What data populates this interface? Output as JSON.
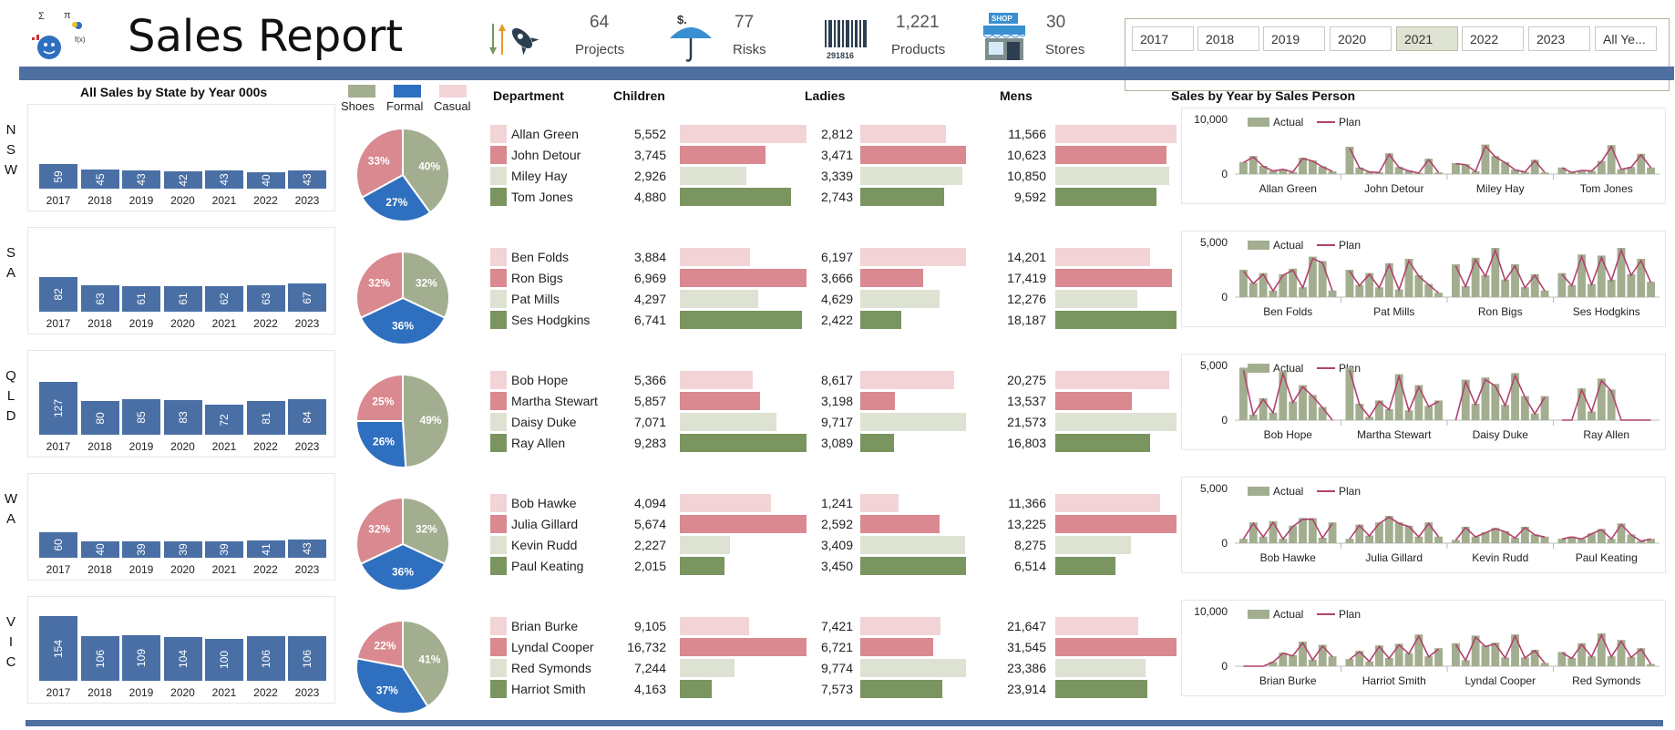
{
  "header": {
    "title": "Sales Report",
    "kpis": [
      {
        "value": "64",
        "label": "Projects",
        "icon": "rocket-icon"
      },
      {
        "value": "77",
        "label": "Risks",
        "icon": "umbrella-icon"
      },
      {
        "value": "1,221",
        "label": "Products",
        "icon": "barcode-icon"
      },
      {
        "value": "30",
        "label": "Stores",
        "icon": "shop-icon"
      }
    ],
    "barcode_text": "291816",
    "shop_sign": "SHOP",
    "logo_symbols": [
      "Σ",
      "π",
      "f(x)"
    ]
  },
  "slicer": {
    "years": [
      "2017",
      "2018",
      "2019",
      "2020",
      "2021",
      "2022",
      "2023",
      "All Ye..."
    ],
    "selected": "2021"
  },
  "headings": {
    "bars_title": "All Sales by State by Year 000s",
    "legend": [
      "Shoes",
      "Formal",
      "Casual"
    ],
    "department": "Department",
    "children": "Children",
    "ladies": "Ladies",
    "mens": "Mens",
    "sales_by_person": "Sales by Year by Sales Person",
    "actual": "Actual",
    "plan": "Plan"
  },
  "colors": {
    "navy": "#4f6fa0",
    "bar_blue": "#4a6fa5",
    "shoes": "#a2ae8f",
    "formal": "#2f6fbf",
    "casual": "#d9898f",
    "light_pink": "#f2d4d6",
    "pink": "#d9898f",
    "light_green": "#dde2d3",
    "green": "#7a9560",
    "plan_line": "#b0436b"
  },
  "states": [
    {
      "letters": [
        "N",
        "S",
        "W"
      ],
      "years": [
        "2017",
        "2018",
        "2019",
        "2020",
        "2021",
        "2022",
        "2023"
      ],
      "bars": [
        59,
        45,
        43,
        42,
        43,
        40,
        43
      ],
      "pie": {
        "shoes": 40,
        "formal": 27,
        "casual": 33
      },
      "people": [
        {
          "name": "Allan Green",
          "children": "5,552",
          "ladies": "2,812",
          "mens": "11,566"
        },
        {
          "name": "John Detour",
          "children": "3,745",
          "ladies": "3,471",
          "mens": "10,623"
        },
        {
          "name": "Miley Hay",
          "children": "2,926",
          "ladies": "3,339",
          "mens": "10,850"
        },
        {
          "name": "Tom Jones",
          "children": "4,880",
          "ladies": "2,743",
          "mens": "9,592"
        }
      ],
      "children_vals": [
        5552,
        3745,
        2926,
        4880
      ],
      "ladies_vals": [
        2812,
        3471,
        3339,
        2743
      ],
      "mens_vals": [
        11566,
        10623,
        10850,
        9592
      ],
      "line": {
        "ymax_label": "10,000",
        "ymin_label": "0",
        "ymax": 10000,
        "groups": [
          "Allan Green",
          "John Detour",
          "Miley Hay",
          "Tom Jones"
        ],
        "actual": [
          [
            2200,
            3300,
            1500,
            600,
            900,
            400,
            3000,
            2500,
            1400,
            500
          ],
          [
            5000,
            1200,
            400,
            300,
            3800,
            1300,
            600,
            200,
            2800,
            300
          ],
          [
            2000,
            1800,
            500,
            5400,
            3300,
            2200,
            800,
            400,
            2600,
            300
          ],
          [
            1200,
            300,
            700,
            600,
            2400,
            5300,
            900,
            1300,
            3700,
            1200
          ]
        ]
      }
    },
    {
      "letters": [
        "S",
        "A"
      ],
      "years": [
        "2017",
        "2018",
        "2019",
        "2020",
        "2021",
        "2022",
        "2023"
      ],
      "bars": [
        82,
        63,
        61,
        61,
        62,
        63,
        67
      ],
      "pie": {
        "shoes": 32,
        "formal": 36,
        "casual": 32
      },
      "people": [
        {
          "name": "Ben Folds",
          "children": "3,884",
          "ladies": "6,197",
          "mens": "14,201"
        },
        {
          "name": "Ron Bigs",
          "children": "6,969",
          "ladies": "3,666",
          "mens": "17,419"
        },
        {
          "name": "Pat Mills",
          "children": "4,297",
          "ladies": "4,629",
          "mens": "12,276"
        },
        {
          "name": "Ses Hodgkins",
          "children": "6,741",
          "ladies": "2,422",
          "mens": "18,187"
        }
      ],
      "children_vals": [
        3884,
        6969,
        4297,
        6741
      ],
      "ladies_vals": [
        6197,
        3666,
        4629,
        2422
      ],
      "mens_vals": [
        14201,
        17419,
        12276,
        18187
      ],
      "line": {
        "ymax_label": "5,000",
        "ymin_label": "0",
        "ymax": 5000,
        "groups": [
          "Ben Folds",
          "Pat Mills",
          "Ron Bigs",
          "Ses Hodgkins"
        ],
        "actual": [
          [
            2500,
            1300,
            2200,
            600,
            2100,
            2600,
            900,
            3700,
            3300,
            600
          ],
          [
            2500,
            1100,
            2200,
            900,
            3100,
            700,
            3500,
            2000,
            1200,
            400
          ],
          [
            3000,
            1000,
            3600,
            2000,
            4500,
            1600,
            3000,
            900,
            2100,
            600
          ],
          [
            2200,
            1100,
            3900,
            1200,
            3800,
            1600,
            4500,
            2100,
            3500,
            1400
          ]
        ]
      }
    },
    {
      "letters": [
        "Q",
        "L",
        "D"
      ],
      "years": [
        "2017",
        "2018",
        "2019",
        "2020",
        "2021",
        "2022",
        "2023"
      ],
      "bars": [
        127,
        80,
        85,
        83,
        72,
        81,
        84
      ],
      "pie": {
        "shoes": 49,
        "formal": 26,
        "casual": 25
      },
      "people": [
        {
          "name": "Bob Hope",
          "children": "5,366",
          "ladies": "8,617",
          "mens": "20,275"
        },
        {
          "name": "Martha Stewart",
          "children": "5,857",
          "ladies": "3,198",
          "mens": "13,537"
        },
        {
          "name": "Daisy Duke",
          "children": "7,071",
          "ladies": "9,717",
          "mens": "21,573"
        },
        {
          "name": "Ray Allen",
          "children": "9,283",
          "ladies": "3,089",
          "mens": "16,803"
        }
      ],
      "children_vals": [
        5366,
        5857,
        7071,
        9283
      ],
      "ladies_vals": [
        8617,
        3198,
        9717,
        3089
      ],
      "mens_vals": [
        20275,
        13537,
        21573,
        16803
      ],
      "line": {
        "ymax_label": "5,000",
        "ymin_label": "0",
        "ymax": 5000,
        "groups": [
          "Bob Hope",
          "Martha Stewart",
          "Daisy Duke",
          "Ray Allen"
        ],
        "actual": [
          [
            4800,
            500,
            2000,
            700,
            4500,
            1700,
            3200,
            2300,
            1200,
            0
          ],
          [
            4800,
            1500,
            300,
            1800,
            1000,
            4200,
            900,
            3200,
            1300,
            1800
          ],
          [
            0,
            3700,
            1500,
            3900,
            3300,
            1400,
            4300,
            2200,
            600,
            2200
          ],
          [
            0,
            0,
            2900,
            800,
            3800,
            2800,
            0,
            0,
            0,
            0
          ]
        ]
      }
    },
    {
      "letters": [
        "W",
        "A"
      ],
      "years": [
        "2017",
        "2018",
        "2019",
        "2020",
        "2021",
        "2022",
        "2023"
      ],
      "bars": [
        60,
        40,
        39,
        39,
        39,
        41,
        43
      ],
      "pie": {
        "shoes": 32,
        "formal": 36,
        "casual": 32
      },
      "people": [
        {
          "name": "Bob Hawke",
          "children": "4,094",
          "ladies": "1,241",
          "mens": "11,366"
        },
        {
          "name": "Julia Gillard",
          "children": "5,674",
          "ladies": "2,592",
          "mens": "13,225"
        },
        {
          "name": "Kevin Rudd",
          "children": "2,227",
          "ladies": "3,409",
          "mens": "8,275"
        },
        {
          "name": "Paul Keating",
          "children": "2,015",
          "ladies": "3,450",
          "mens": "6,514"
        }
      ],
      "children_vals": [
        4094,
        5674,
        2227,
        2015
      ],
      "ladies_vals": [
        1241,
        2592,
        3409,
        3450
      ],
      "mens_vals": [
        11366,
        13225,
        8275,
        6514
      ],
      "line": {
        "ymax_label": "5,000",
        "ymin_label": "0",
        "ymax": 5000,
        "groups": [
          "Bob Hawke",
          "Julia Gillard",
          "Kevin Rudd",
          "Paul Keating"
        ],
        "actual": [
          [
            400,
            1900,
            600,
            2000,
            400,
            1600,
            2300,
            2300,
            500,
            1900
          ],
          [
            400,
            1700,
            700,
            1900,
            2500,
            1900,
            1600,
            600,
            1900,
            600
          ],
          [
            300,
            1500,
            600,
            1000,
            1400,
            1100,
            500,
            1500,
            800,
            600
          ],
          [
            400,
            600,
            400,
            900,
            1300,
            400,
            1800,
            800,
            200,
            400
          ]
        ]
      }
    },
    {
      "letters": [
        "V",
        "I",
        "C"
      ],
      "years": [
        "2017",
        "2018",
        "2019",
        "2020",
        "2021",
        "2022",
        "2023"
      ],
      "bars": [
        154,
        106,
        109,
        104,
        100,
        106,
        106
      ],
      "pie": {
        "shoes": 41,
        "formal": 37,
        "casual": 22
      },
      "people": [
        {
          "name": "Brian Burke",
          "children": "9,105",
          "ladies": "7,421",
          "mens": "21,647"
        },
        {
          "name": "Lyndal Cooper",
          "children": "16,732",
          "ladies": "6,721",
          "mens": "31,545"
        },
        {
          "name": "Red Symonds",
          "children": "7,244",
          "ladies": "9,774",
          "mens": "23,386"
        },
        {
          "name": "Harriot Smith",
          "children": "4,163",
          "ladies": "7,573",
          "mens": "23,914"
        }
      ],
      "children_vals": [
        9105,
        16732,
        7244,
        4163
      ],
      "ladies_vals": [
        7421,
        6721,
        9774,
        7573
      ],
      "mens_vals": [
        21647,
        31545,
        23386,
        23914
      ],
      "line": {
        "ymax_label": "10,000",
        "ymin_label": "0",
        "ymax": 10000,
        "groups": [
          "Brian Burke",
          "Harriot Smith",
          "Lyndal Cooper",
          "Red Symonds"
        ],
        "actual": [
          [
            0,
            0,
            0,
            800,
            2500,
            2000,
            4500,
            1200,
            3900,
            1800
          ],
          [
            1300,
            2800,
            900,
            3800,
            1500,
            4100,
            2400,
            5800,
            1800,
            3300
          ],
          [
            4200,
            1100,
            5600,
            3800,
            4300,
            1600,
            5800,
            1600,
            3000,
            600
          ],
          [
            2600,
            1500,
            4200,
            1800,
            6000,
            1800,
            4800,
            1700,
            3300,
            400
          ]
        ]
      }
    }
  ]
}
